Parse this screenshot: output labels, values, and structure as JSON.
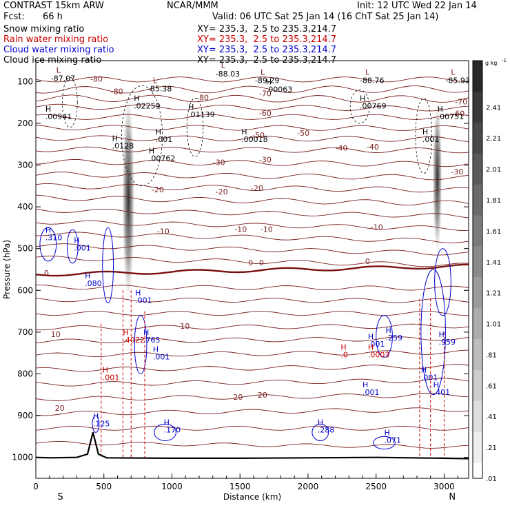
{
  "header": {
    "model": "CONTRAST 15km ARW",
    "org": "NCAR/MMM",
    "init": "Init: 12 UTC Wed 22 Jan 14",
    "fcst_label": "Fcst:",
    "fcst_value": "66 h",
    "valid": "Valid: 06 UTC Sat 25 Jan 14 (16 ChT Sat 25 Jan 14)"
  },
  "legend": [
    {
      "name": "Snow mixing ratio",
      "xy": "XY= 235.3,  2.5 to 235.3,214.7",
      "color": "#000000"
    },
    {
      "name": "Rain water mixing ratio",
      "xy": "XY= 235.3,  2.5 to 235.3,214.7",
      "color": "#cc0000"
    },
    {
      "name": "Cloud water mixing ratio",
      "xy": "XY= 235.3,  2.5 to 235.3,214.7",
      "color": "#0000cc"
    },
    {
      "name": "Cloud ice mixing ratio",
      "xy": "XY= 235.3,  2.5 to 235.3,214.7",
      "color": "#000000"
    }
  ],
  "chart_data": {
    "type": "heatmap",
    "xlabel": "Distance (km)",
    "ylabel": "Pressure (hPa)",
    "x_range": [
      0,
      3180
    ],
    "y_range": [
      1050,
      50
    ],
    "x_ticks": [
      "0",
      "500",
      "1000",
      "1500",
      "2000",
      "2500",
      "3000"
    ],
    "x_tick_values": [
      0,
      500,
      1000,
      1500,
      2000,
      2500,
      3000
    ],
    "y_ticks": [
      "100",
      "200",
      "300",
      "400",
      "500",
      "600",
      "700",
      "800",
      "900",
      "1000"
    ],
    "y_tick_values": [
      100,
      200,
      300,
      400,
      500,
      600,
      700,
      800,
      900,
      1000
    ],
    "end_labels": {
      "left": "S",
      "right": "N"
    },
    "colorbar": {
      "unit": "g kg",
      "unit_exp": "-1",
      "labels": [
        "2.41",
        "2.21",
        "2.01",
        "1.81",
        "1.61",
        "1.41",
        "1.21",
        "1.01",
        ".81",
        ".61",
        ".41",
        ".21",
        ".01"
      ],
      "values": [
        2.41,
        2.21,
        2.01,
        1.81,
        1.61,
        1.41,
        1.21,
        1.01,
        0.81,
        0.61,
        0.41,
        0.21,
        0.01
      ]
    },
    "temperature_contours": [
      {
        "label": "-80",
        "x": 400,
        "p": 100
      },
      {
        "label": "-80",
        "x": 1180,
        "p": 145
      },
      {
        "label": "-80",
        "x": 550,
        "p": 130
      },
      {
        "label": "-70",
        "x": 1640,
        "p": 135
      },
      {
        "label": "-70",
        "x": 3080,
        "p": 155
      },
      {
        "label": "-60",
        "x": 1640,
        "p": 182
      },
      {
        "label": "-60",
        "x": 3060,
        "p": 183
      },
      {
        "label": "-50",
        "x": 1590,
        "p": 235
      },
      {
        "label": "-50",
        "x": 1920,
        "p": 230
      },
      {
        "label": "-40",
        "x": 2200,
        "p": 265
      },
      {
        "label": "-40",
        "x": 2430,
        "p": 263
      },
      {
        "label": "-30",
        "x": 1300,
        "p": 300
      },
      {
        "label": "-30",
        "x": 1640,
        "p": 293
      },
      {
        "label": "-30",
        "x": 3050,
        "p": 322
      },
      {
        "label": "-20",
        "x": 850,
        "p": 365
      },
      {
        "label": "-20",
        "x": 1320,
        "p": 370
      },
      {
        "label": "-20",
        "x": 1580,
        "p": 362
      },
      {
        "label": "-10",
        "x": 890,
        "p": 465
      },
      {
        "label": "-10",
        "x": 1460,
        "p": 460
      },
      {
        "label": "-10",
        "x": 1650,
        "p": 460
      },
      {
        "label": "-10",
        "x": 2460,
        "p": 455
      },
      {
        "label": "0",
        "x": 60,
        "p": 565
      },
      {
        "label": "0",
        "x": 1640,
        "p": 540
      },
      {
        "label": "0",
        "x": 1560,
        "p": 540
      },
      {
        "label": "0",
        "x": 2420,
        "p": 537
      },
      {
        "label": "10",
        "x": 110,
        "p": 712
      },
      {
        "label": "10",
        "x": 1060,
        "p": 692
      },
      {
        "label": "20",
        "x": 140,
        "p": 888
      },
      {
        "label": "20",
        "x": 1450,
        "p": 862
      },
      {
        "label": "20",
        "x": 1630,
        "p": 857
      }
    ],
    "temperature_extrema": [
      {
        "type": "L",
        "value": "-87.07",
        "x": 110,
        "p": 95
      },
      {
        "type": "L",
        "value": "-85.38",
        "x": 820,
        "p": 120
      },
      {
        "type": "L",
        "value": "-88.03",
        "x": 1320,
        "p": 85
      },
      {
        "type": "L",
        "value": "-89.29",
        "x": 1610,
        "p": 100
      },
      {
        "type": "L",
        "value": "-88.76",
        "x": 2380,
        "p": 100
      },
      {
        "type": "L",
        "value": "-85.93",
        "x": 3010,
        "p": 100
      }
    ],
    "snow_maxima": [
      {
        "value": ".00941",
        "x": 70,
        "p": 190
      },
      {
        "value": ".02259",
        "x": 720,
        "p": 165
      },
      {
        "value": ".01139",
        "x": 1120,
        "p": 185
      },
      {
        "value": ".0128",
        "x": 560,
        "p": 260
      },
      {
        "value": ".00762",
        "x": 830,
        "p": 290
      },
      {
        "value": ".001",
        "x": 880,
        "p": 245
      },
      {
        "value": ".00018",
        "x": 1510,
        "p": 245
      },
      {
        "value": ".00063",
        "x": 1690,
        "p": 125
      },
      {
        "value": ".00769",
        "x": 2380,
        "p": 165
      },
      {
        "value": ".00751",
        "x": 2950,
        "p": 190
      },
      {
        "value": ".001",
        "x": 2840,
        "p": 245
      }
    ],
    "cloud_water_maxima": [
      {
        "value": ".310",
        "x": 70,
        "p": 480
      },
      {
        "value": ".001",
        "x": 280,
        "p": 505
      },
      {
        "value": ".080",
        "x": 360,
        "p": 590
      },
      {
        "value": ".001",
        "x": 730,
        "p": 630
      },
      {
        "value": ".765",
        "x": 790,
        "p": 725
      },
      {
        "value": ".001",
        "x": 860,
        "p": 765
      },
      {
        "value": ".259",
        "x": 2570,
        "p": 720
      },
      {
        "value": ".001",
        "x": 2440,
        "p": 735
      },
      {
        "value": ".959",
        "x": 2960,
        "p": 730
      },
      {
        "value": ".001",
        "x": 2830,
        "p": 815
      },
      {
        "value": ".401",
        "x": 2920,
        "p": 850
      },
      {
        "value": ".001",
        "x": 2400,
        "p": 850
      },
      {
        "value": ".125",
        "x": 420,
        "p": 925
      },
      {
        "value": ".170",
        "x": 940,
        "p": 940
      },
      {
        "value": ".288",
        "x": 2070,
        "p": 940
      },
      {
        "value": ".071",
        "x": 2560,
        "p": 965
      }
    ],
    "rain_maxima": [
      {
        "value": ".4022",
        "x": 640,
        "p": 725
      },
      {
        "value": ".001",
        "x": 490,
        "p": 815
      },
      {
        "value": ".0",
        "x": 2240,
        "p": 760
      },
      {
        "value": ".0003",
        "x": 2440,
        "p": 760
      }
    ]
  }
}
